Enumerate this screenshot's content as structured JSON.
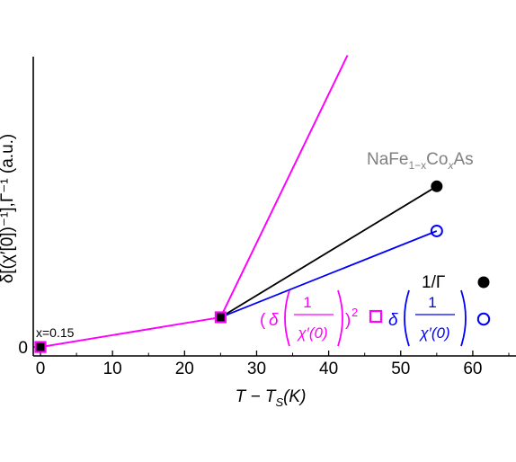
{
  "chart_data": {
    "type": "line",
    "x_ticks": [
      0,
      10,
      20,
      30,
      40,
      50,
      60
    ],
    "y_ticks": [
      0
    ],
    "y_tick_labels": [
      "0"
    ],
    "xlim": [
      -1,
      66
    ],
    "ylim": [
      -0.3,
      10
    ],
    "xlabel": {
      "main": "T − T",
      "sub": "S",
      "tail": "(K)"
    },
    "ylabel": "δ[(χ′[0])⁻¹],Γ⁻¹ (a.u.)",
    "grid": false,
    "series": [
      {
        "name": "1/Γ",
        "color": "#000000",
        "marker": "filled-circle",
        "line_visible_from": 25,
        "points": [
          [
            0,
            0
          ],
          [
            25,
            1
          ],
          [
            55,
            5.4
          ]
        ]
      },
      {
        "name": "δ(1/χ′(0))",
        "color": "#0000ff",
        "marker": "open-circle",
        "line_visible_from": 25,
        "points": [
          [
            0,
            0
          ],
          [
            25,
            1
          ],
          [
            55,
            3.9
          ]
        ]
      },
      {
        "name": "(δ(1/χ′(0)))²",
        "color": "#ff00ff",
        "marker": "open-square",
        "points": [
          [
            0,
            0
          ],
          [
            25,
            1
          ],
          [
            42.6,
            9.8
          ]
        ]
      }
    ],
    "labels": {
      "compound": {
        "pre": "NaFe",
        "sub1": "1−x",
        "mid": "Co",
        "sub2": "x",
        "post": "As"
      },
      "x_label": "x=0.15"
    },
    "legend": {
      "placement": "bottom-right",
      "gamma": "1/Γ",
      "chi_numer": "1",
      "chi_denom": "χ′(0)",
      "chi_delta": "δ",
      "sq_open": "(",
      "sq_close": ")",
      "sq_power": "2"
    },
    "colors": {
      "black": "#000000",
      "blue": "#0000ff",
      "magenta": "#ff00ff"
    }
  }
}
